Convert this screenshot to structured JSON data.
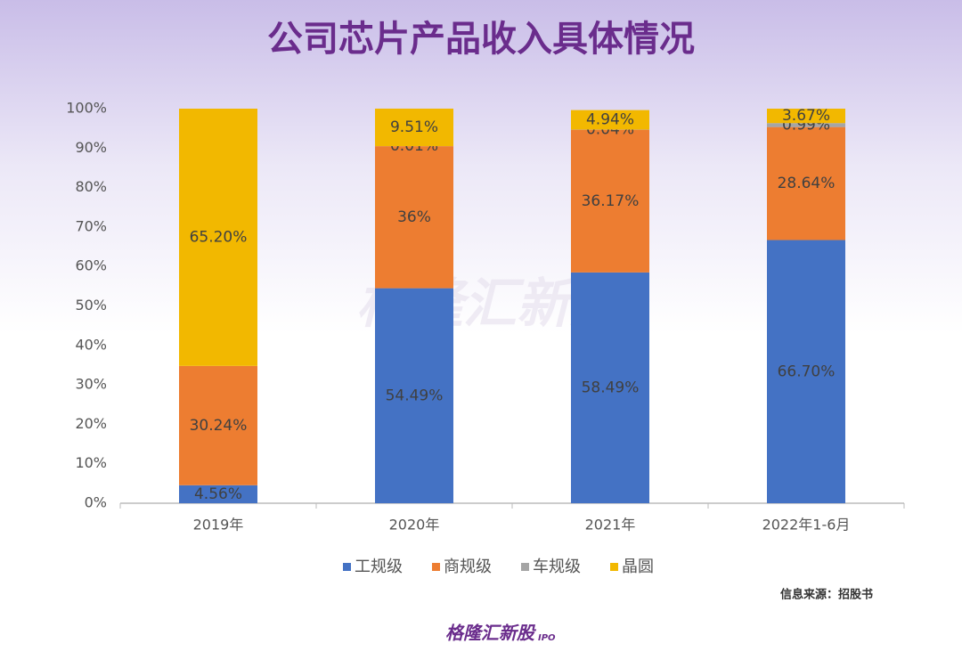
{
  "chart_data": {
    "type": "stacked_bar",
    "title": "公司芯片产品收入具体情况",
    "categories": [
      "2019年",
      "2020年",
      "2021年",
      "2022年1-6月"
    ],
    "series": [
      {
        "name": "工规级",
        "color": "#4472c4",
        "values": [
          4.56,
          54.49,
          58.49,
          66.7
        ],
        "value_labels": [
          "4.56%",
          "54.49%",
          "58.49%",
          "66.70%"
        ]
      },
      {
        "name": "商规级",
        "color": "#ed7d31",
        "values": [
          30.24,
          36,
          36.17,
          28.64
        ],
        "value_labels": [
          "30.24%",
          "36%",
          "36.17%",
          "28.64%"
        ]
      },
      {
        "name": "车规级",
        "color": "#a5a5a5",
        "values": [
          null,
          0.01,
          0.04,
          0.99
        ],
        "value_labels": [
          null,
          "0.01%",
          "0.04%",
          "0.99%"
        ]
      },
      {
        "name": "晶圆",
        "color": "#f2b800",
        "values": [
          65.2,
          9.51,
          4.94,
          3.67
        ],
        "value_labels": [
          "65.20%",
          "9.51%",
          "4.94%",
          "3.67%"
        ]
      }
    ],
    "ylim": [
      0,
      100
    ],
    "yticks": [
      {
        "value": 0,
        "label": "0%"
      },
      {
        "value": 10,
        "label": "10%"
      },
      {
        "value": 20,
        "label": "20%"
      },
      {
        "value": 30,
        "label": "30%"
      },
      {
        "value": 40,
        "label": "40%"
      },
      {
        "value": 50,
        "label": "50%"
      },
      {
        "value": 60,
        "label": "60%"
      },
      {
        "value": 70,
        "label": "70%"
      },
      {
        "value": 80,
        "label": "80%"
      },
      {
        "value": 90,
        "label": "90%"
      },
      {
        "value": 100,
        "label": "100%"
      }
    ],
    "source": "信息来源：招股书",
    "watermark": "格隆汇新股",
    "logo": {
      "text": "格隆汇新股",
      "sub": "IPO"
    }
  }
}
